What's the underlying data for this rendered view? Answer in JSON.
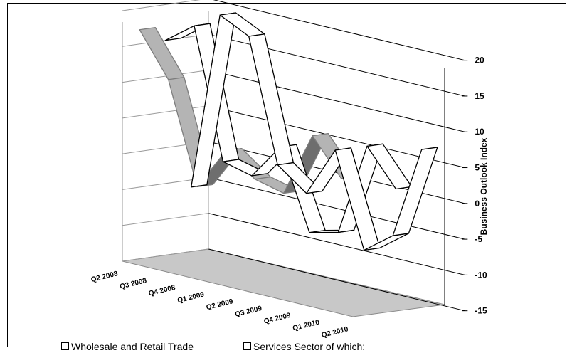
{
  "chart_data": {
    "type": "line",
    "subtype": "3d-ribbon",
    "categories": [
      "Q2 2008",
      "Q3 2008",
      "Q4 2008",
      "Q1 2009",
      "Q2 2009",
      "Q3 2009",
      "Q4 2009",
      "Q1 2010",
      "Q2 2010"
    ],
    "series": [
      {
        "name": "Wholesale and Retail Trade",
        "values": [
          -6,
          19,
          17,
          0,
          -3,
          4,
          -9,
          -6,
          7
        ],
        "fill": "#ffffff"
      },
      {
        "name": "Services Sector of which:",
        "values": [
          15,
          18,
          0,
          -1,
          4,
          -7,
          -6,
          7,
          2
        ],
        "fill": "#ffffff"
      },
      {
        "name": "",
        "values": [
          17,
          11,
          -3,
          3,
          0,
          -1,
          8,
          3,
          null
        ],
        "fill": "#999999"
      }
    ],
    "ylabel": "Business Outlook Index",
    "ylim": [
      -15,
      20
    ],
    "yticks": [
      20,
      15,
      10,
      5,
      0,
      -5,
      -10,
      -15
    ],
    "grid": true,
    "legend": "bottom",
    "colors": {
      "floor": "#c0c0c0",
      "ribbon_top": "#b4b4b4",
      "ribbon_side": "#6e6e6e",
      "gridline": "#000000"
    }
  }
}
